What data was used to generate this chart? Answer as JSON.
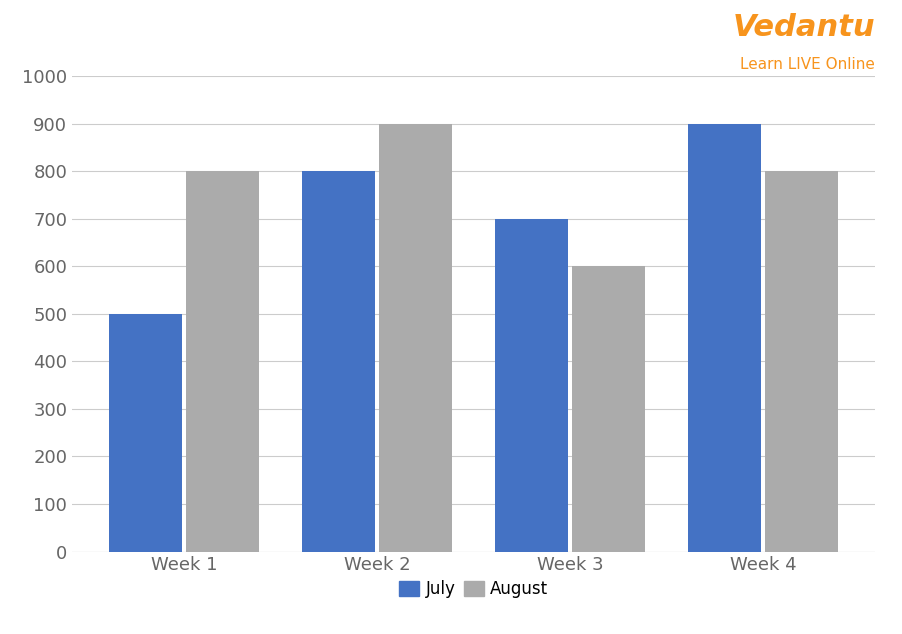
{
  "categories": [
    "Week 1",
    "Week 2",
    "Week 3",
    "Week 4"
  ],
  "july_values": [
    500,
    800,
    700,
    900
  ],
  "august_values": [
    800,
    900,
    600,
    800
  ],
  "july_color": "#4472C4",
  "august_color": "#ABABAB",
  "ylim": [
    0,
    1000
  ],
  "yticks": [
    0,
    100,
    200,
    300,
    400,
    500,
    600,
    700,
    800,
    900,
    1000
  ],
  "bar_width": 0.38,
  "legend_labels": [
    "July",
    "August"
  ],
  "background_color": "#FFFFFF",
  "grid_color": "#CCCCCC",
  "tick_color": "#666666",
  "tick_fontsize": 13,
  "vedantu_text": "Vedantu",
  "vedantu_sub": "Learn LIVE Online",
  "vedantu_color": "#F7941D"
}
